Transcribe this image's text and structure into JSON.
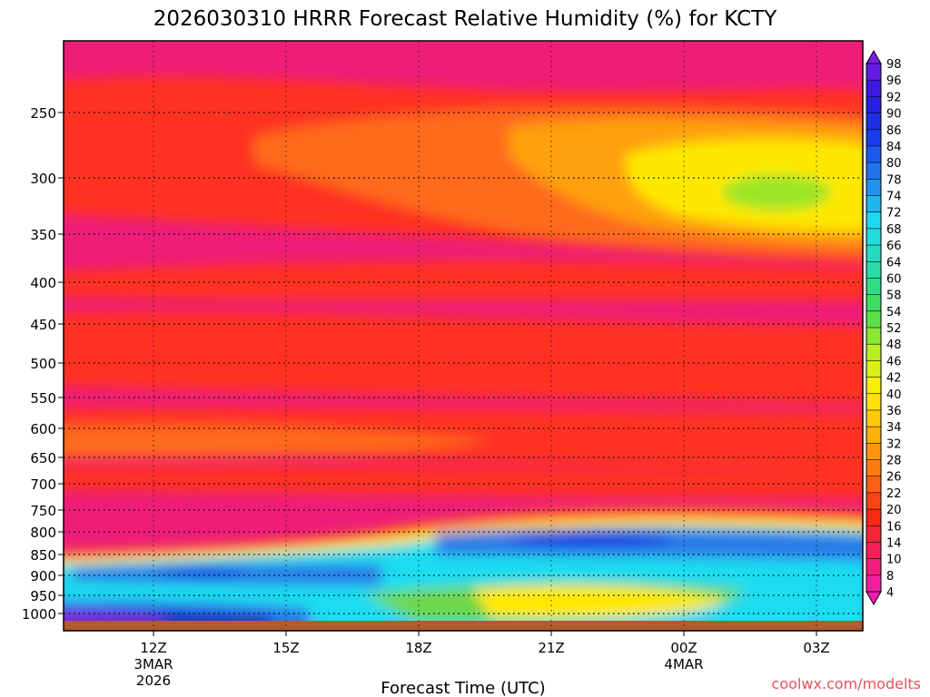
{
  "chart_data": {
    "type": "heatmap",
    "title": "2026030310 HRRR Forecast Relative Humidity (%) for KCTY",
    "xlabel": "Forecast Time (UTC)",
    "ylabel": "",
    "y_ticks": [
      "250",
      "300",
      "350",
      "400",
      "450",
      "500",
      "550",
      "600",
      "650",
      "700",
      "750",
      "800",
      "850",
      "900",
      "950",
      "1000"
    ],
    "x_ticks": [
      {
        "label": "12Z",
        "sub1": "3MAR",
        "sub2": "2026"
      },
      {
        "label": "15Z",
        "sub1": "",
        "sub2": ""
      },
      {
        "label": "18Z",
        "sub1": "",
        "sub2": ""
      },
      {
        "label": "21Z",
        "sub1": "",
        "sub2": ""
      },
      {
        "label": "00Z",
        "sub1": "4MAR",
        "sub2": ""
      },
      {
        "label": "03Z",
        "sub1": "",
        "sub2": ""
      }
    ],
    "colorbar_labels": [
      "98",
      "96",
      "92",
      "90",
      "86",
      "84",
      "80",
      "78",
      "74",
      "72",
      "68",
      "66",
      "64",
      "60",
      "58",
      "54",
      "52",
      "48",
      "46",
      "42",
      "40",
      "36",
      "34",
      "32",
      "28",
      "26",
      "22",
      "20",
      "16",
      "14",
      "10",
      "8",
      "4"
    ],
    "grid": true,
    "credit": "coolwx.com/modelts"
  }
}
